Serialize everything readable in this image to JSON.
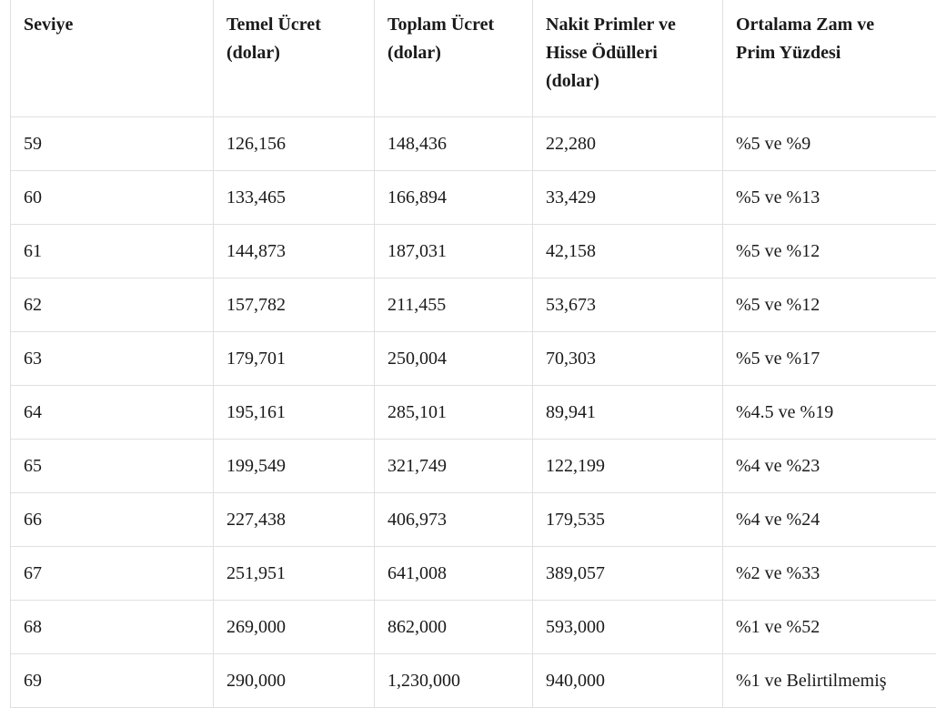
{
  "table": {
    "header": [
      [
        "Seviye"
      ],
      [
        "Temel Ücret",
        "(dolar)"
      ],
      [
        "Toplam Ücret",
        "(dolar)"
      ],
      [
        "Nakit Primler ve",
        "Hisse Ödülleri",
        "(dolar)"
      ],
      [
        "Ortalama Zam ve",
        "Prim Yüzdesi"
      ]
    ],
    "rows": [
      [
        "59",
        "126,156",
        "148,436",
        "22,280",
        "%5 ve %9"
      ],
      [
        "60",
        "133,465",
        "166,894",
        "33,429",
        "%5 ve %13"
      ],
      [
        "61",
        "144,873",
        "187,031",
        "42,158",
        "%5 ve %12"
      ],
      [
        "62",
        "157,782",
        "211,455",
        "53,673",
        "%5 ve %12"
      ],
      [
        "63",
        "179,701",
        "250,004",
        "70,303",
        "%5 ve %17"
      ],
      [
        "64",
        "195,161",
        "285,101",
        "89,941",
        "%4.5 ve %19"
      ],
      [
        "65",
        "199,549",
        "321,749",
        "122,199",
        "%4 ve %23"
      ],
      [
        "66",
        "227,438",
        "406,973",
        "179,535",
        "%4 ve %24"
      ],
      [
        "67",
        "251,951",
        "641,008",
        "389,057",
        "%2 ve %33"
      ],
      [
        "68",
        "269,000",
        "862,000",
        "593,000",
        "%1 ve %52"
      ],
      [
        "69",
        "290,000",
        "1,230,000",
        "940,000",
        "%1 ve Belirtilmemiş"
      ]
    ]
  }
}
